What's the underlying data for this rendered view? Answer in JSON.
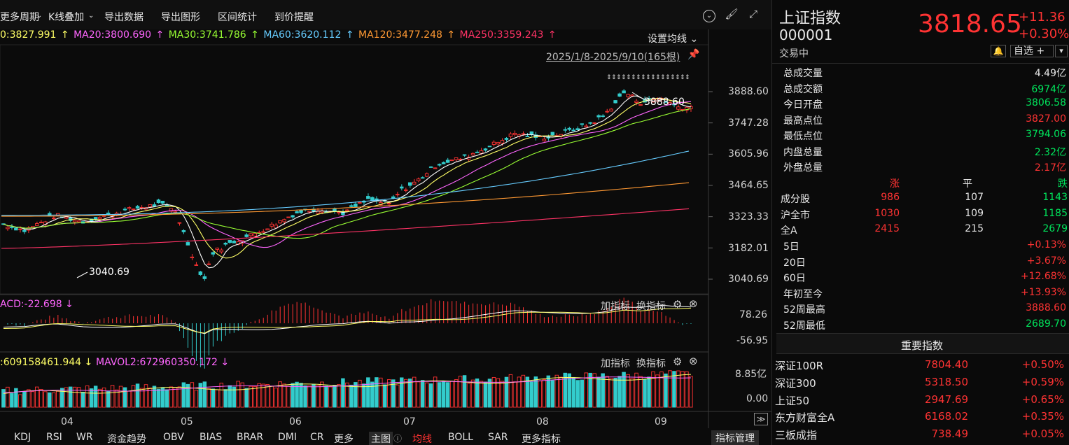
{
  "toolbar": {
    "more_period": "更多周期",
    "kline_overlay": "K线叠加",
    "export_data": "导出数据",
    "export_chart": "导出图形",
    "range_stats": "区间统计",
    "price_alert": "到价提醒",
    "expand_icon": "chevron-circle-icon",
    "brush_icon": "brush-icon",
    "fullscreen_icon": "fullscreen-icon"
  },
  "ma": {
    "ma10": "0:3827.991",
    "ma20": "MA20:3800.690",
    "ma30": "MA30:3741.786",
    "ma60": "MA60:3620.112",
    "ma120": "MA120:3477.248",
    "ma250": "MA250:3359.243",
    "arrow": "↑",
    "settings": "设置均线",
    "colors": {
      "ma10": "#ffff66",
      "ma20": "#ff66ff",
      "ma30": "#99ff33",
      "ma60": "#66ccff",
      "ma120": "#ff9933",
      "ma250": "#ff3366"
    }
  },
  "range": {
    "text": "2025/1/8-2025/9/10(165根)"
  },
  "price_axis": [
    "3888.60",
    "3747.28",
    "3605.96",
    "3464.65",
    "3323.33",
    "3182.01",
    "3040.69"
  ],
  "annotations": {
    "high": "3888.60",
    "low": "3040.69"
  },
  "macd": {
    "label": "ACD:-22.698",
    "arrow": "↓",
    "top": "78.26",
    "bottom": "-56.95",
    "add_indicator": "加指标",
    "switch_indicator": "换指标"
  },
  "vol": {
    "label1": ":609158461.944",
    "label2": "MAVOL2:672960350.172",
    "arrow": "↓",
    "top": "8.85亿",
    "bottom": "0.00",
    "add_indicator": "加指标",
    "switch_indicator": "换指标"
  },
  "months": [
    "04",
    "05",
    "06",
    "07",
    "08",
    "09"
  ],
  "bottom_tabs": [
    "KDJ",
    "RSI",
    "WR",
    "资金趋势",
    "OBV",
    "BIAS",
    "BRAR",
    "DMI",
    "CR",
    "更多",
    "主图",
    "均线",
    "BOLL",
    "SAR",
    "更多指标",
    "指标管理"
  ],
  "quote": {
    "name": "上证指数",
    "code": "000001",
    "status": "交易中",
    "price": "3818.65",
    "change": "+11.36",
    "pct": "+0.30%",
    "watch": "自选 +",
    "dropdown": "▾"
  },
  "stats": [
    {
      "label": "总成交量",
      "value": "4.49亿",
      "color": "white"
    },
    {
      "label": "总成交额",
      "value": "6974亿",
      "color": "green"
    },
    {
      "label": "今日开盘",
      "value": "3806.58",
      "color": "green"
    },
    {
      "label": "最高点位",
      "value": "3827.00",
      "color": "red"
    },
    {
      "label": "最低点位",
      "value": "3794.06",
      "color": "green"
    },
    {
      "label": "内盘总量",
      "value": "2.32亿",
      "color": "green"
    },
    {
      "label": "外盘总量",
      "value": "2.17亿",
      "color": "red"
    }
  ],
  "breadth_header": {
    "up": "涨",
    "flat": "平",
    "down": "跌"
  },
  "breadth": [
    {
      "label": "成分股",
      "up": "986",
      "flat": "107",
      "down": "1143"
    },
    {
      "label": "沪全市",
      "up": "1030",
      "flat": "109",
      "down": "1185"
    },
    {
      "label": "全A",
      "up": "2415",
      "flat": "215",
      "down": "2679"
    }
  ],
  "periods": [
    {
      "label": "5日",
      "value": "+0.13%",
      "color": "red"
    },
    {
      "label": "20日",
      "value": "+3.67%",
      "color": "red"
    },
    {
      "label": "60日",
      "value": "+12.68%",
      "color": "red"
    },
    {
      "label": "年初至今",
      "value": "+13.93%",
      "color": "red"
    },
    {
      "label": "52周最高",
      "value": "3888.60",
      "color": "red"
    },
    {
      "label": "52周最低",
      "value": "2689.70",
      "color": "green"
    }
  ],
  "important": {
    "title": "重要指数",
    "rows": [
      {
        "name": "深证100R",
        "price": "7804.40",
        "pct": "+0.50%"
      },
      {
        "name": "深证300",
        "price": "5318.50",
        "pct": "+0.59%"
      },
      {
        "name": "上证50",
        "price": "2947.69",
        "pct": "+0.65%"
      },
      {
        "name": "东方财富全A",
        "price": "6168.02",
        "pct": "+0.35%"
      },
      {
        "name": "三板成指",
        "price": "738.49",
        "pct": "+0.05%"
      }
    ]
  }
}
